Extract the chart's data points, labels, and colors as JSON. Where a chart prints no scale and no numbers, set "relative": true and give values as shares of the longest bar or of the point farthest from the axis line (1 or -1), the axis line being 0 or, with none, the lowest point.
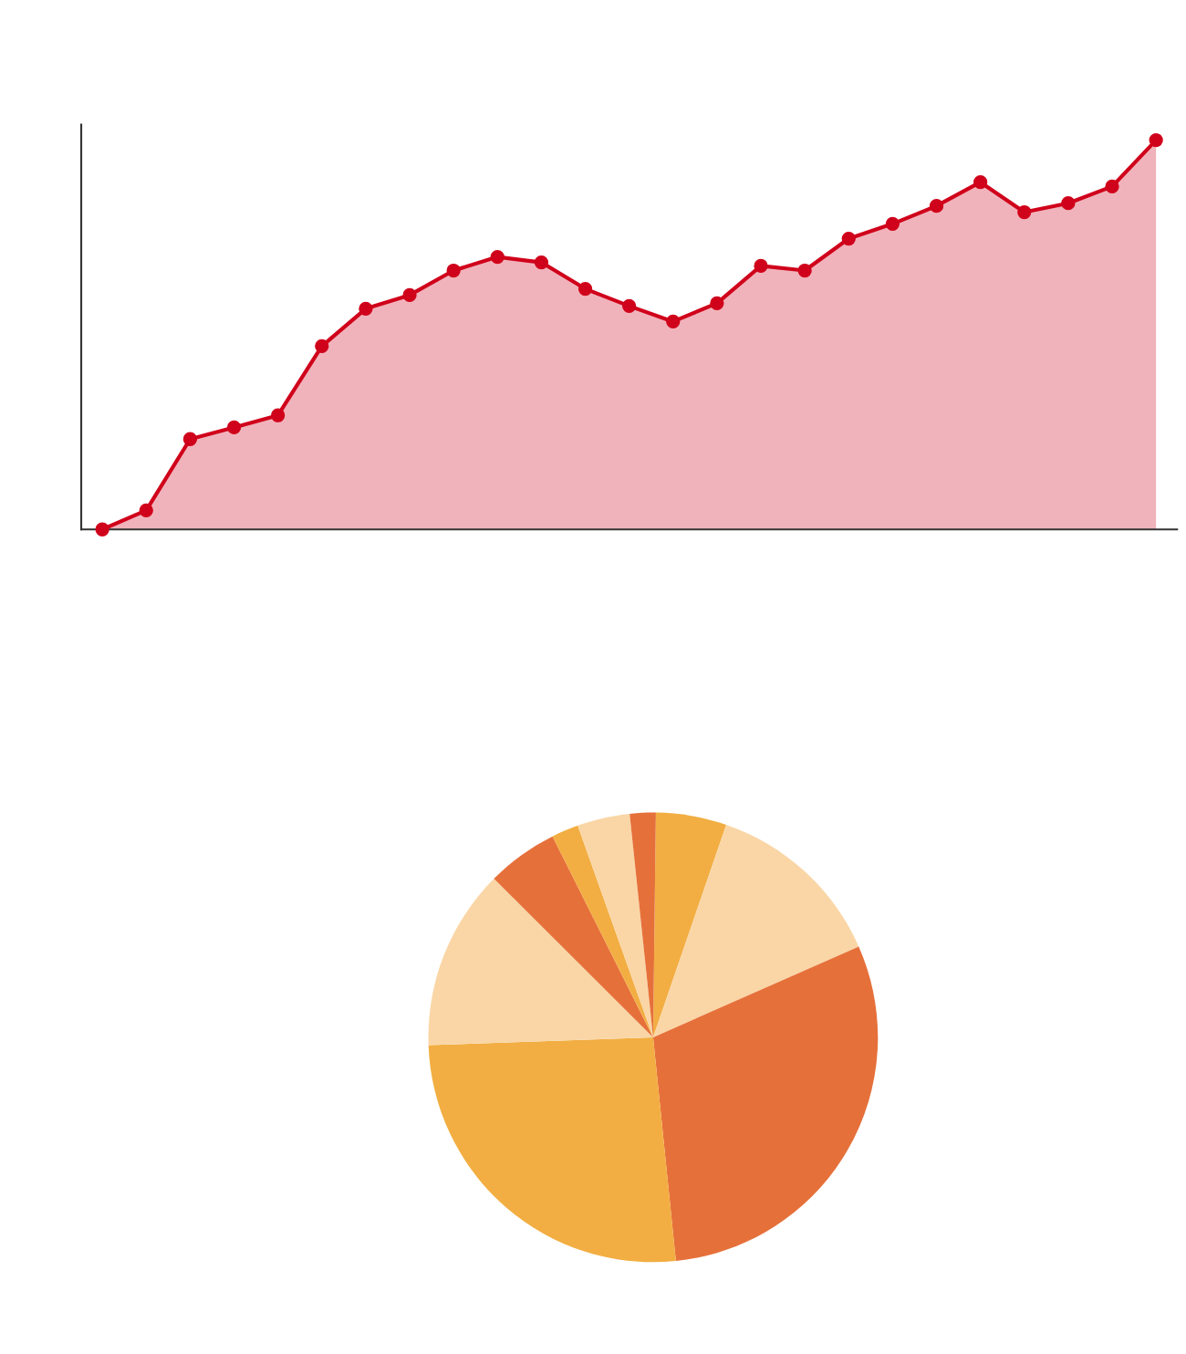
{
  "chart_data": [
    {
      "type": "area",
      "relative": true,
      "marker": "circle",
      "line_style": "solid",
      "grid": false,
      "categories": [
        null,
        null,
        null,
        null,
        null,
        null,
        null,
        null,
        null,
        null,
        null,
        null,
        null,
        null,
        null,
        null,
        null,
        null,
        null,
        null,
        null,
        null,
        null,
        null,
        null
      ],
      "series": [
        {
          "color": "#d0021b",
          "values": [
            0,
            0.049,
            0.232,
            0.262,
            0.293,
            0.471,
            0.567,
            0.602,
            0.665,
            0.7,
            0.686,
            0.618,
            0.574,
            0.534,
            0.581,
            0.677,
            0.665,
            0.747,
            0.785,
            0.831,
            0.892,
            0.815,
            0.838,
            0.881,
            1
          ]
        }
      ]
    },
    {
      "type": "pie",
      "categories": [
        null,
        null,
        null,
        null,
        null,
        null,
        null,
        null,
        null
      ],
      "values": [
        5.08,
        13.11,
        30.0,
        26.06,
        13.03,
        5.14,
        1.94,
        3.78,
        1.86
      ],
      "colors": [
        "#f2ae42",
        "#fad6a6",
        "#e6703a",
        "#f2ae42",
        "#fad6a6",
        "#e6703a",
        "#f2ae42",
        "#fad6a6",
        "#e6703a"
      ]
    }
  ]
}
